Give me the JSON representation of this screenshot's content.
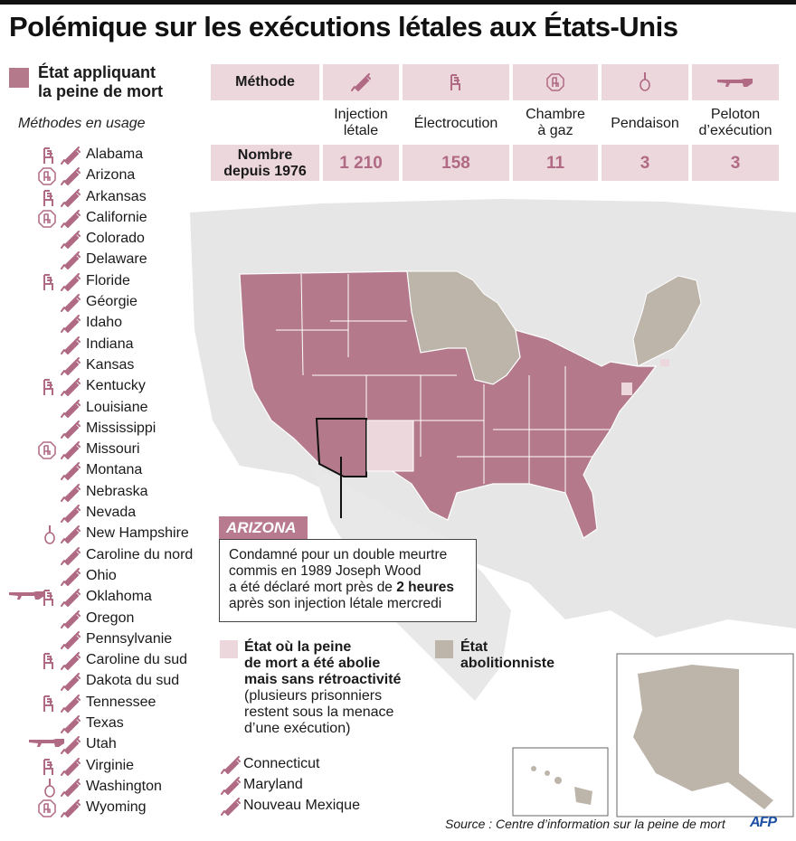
{
  "title": "Polémique sur les exécutions létales aux États-Unis",
  "legend": {
    "death_penalty": {
      "label_line1": "État appliquant",
      "label_line2": "la peine de mort",
      "color": "#b47a8c"
    },
    "abolished_not_retro": {
      "line1": "État où la peine",
      "line2": "de mort a été abolie",
      "line3": "mais sans rétroactivité",
      "note1": "(plusieurs prisonniers",
      "note2": "restent sous la menace",
      "note3": "d’une exécution)",
      "color": "#ecd7dd"
    },
    "abolitionist": {
      "line1": "État",
      "line2": "abolitionniste",
      "color": "#bdb5aa"
    }
  },
  "methods_heading": "Méthodes en usage",
  "table": {
    "header_label": "Méthode",
    "count_label_line1": "Nombre",
    "count_label_line2": "depuis 1976",
    "methods": [
      {
        "icon": "syringe-icon",
        "line1": "Injection",
        "line2": "létale",
        "count": "1 210"
      },
      {
        "icon": "electric-chair-icon",
        "line1": "Électrocution",
        "line2": "",
        "count": "158"
      },
      {
        "icon": "gas-chamber-icon",
        "line1": "Chambre",
        "line2": "à gaz",
        "count": "11"
      },
      {
        "icon": "noose-icon",
        "line1": "Pendaison",
        "line2": "",
        "count": "3"
      },
      {
        "icon": "rifle-icon",
        "line1": "Peloton",
        "line2": "d’exécution",
        "count": "3"
      }
    ]
  },
  "states": [
    {
      "name": "Alabama",
      "methods": [
        "chair",
        "syringe"
      ]
    },
    {
      "name": "Arizona",
      "methods": [
        "gas",
        "syringe"
      ]
    },
    {
      "name": "Arkansas",
      "methods": [
        "chair",
        "syringe"
      ]
    },
    {
      "name": "Californie",
      "methods": [
        "gas",
        "syringe"
      ]
    },
    {
      "name": "Colorado",
      "methods": [
        "syringe"
      ]
    },
    {
      "name": "Delaware",
      "methods": [
        "syringe"
      ]
    },
    {
      "name": "Floride",
      "methods": [
        "chair",
        "syringe"
      ]
    },
    {
      "name": "Géorgie",
      "methods": [
        "syringe"
      ]
    },
    {
      "name": "Idaho",
      "methods": [
        "syringe"
      ]
    },
    {
      "name": "Indiana",
      "methods": [
        "syringe"
      ]
    },
    {
      "name": "Kansas",
      "methods": [
        "syringe"
      ]
    },
    {
      "name": "Kentucky",
      "methods": [
        "chair",
        "syringe"
      ]
    },
    {
      "name": "Louisiane",
      "methods": [
        "syringe"
      ]
    },
    {
      "name": "Mississippi",
      "methods": [
        "syringe"
      ]
    },
    {
      "name": "Missouri",
      "methods": [
        "gas",
        "syringe"
      ]
    },
    {
      "name": "Montana",
      "methods": [
        "syringe"
      ]
    },
    {
      "name": "Nebraska",
      "methods": [
        "syringe"
      ]
    },
    {
      "name": "Nevada",
      "methods": [
        "syringe"
      ]
    },
    {
      "name": "New Hampshire",
      "methods": [
        "noose",
        "syringe"
      ]
    },
    {
      "name": "Caroline du nord",
      "methods": [
        "syringe"
      ]
    },
    {
      "name": "Ohio",
      "methods": [
        "syringe"
      ]
    },
    {
      "name": "Oklahoma",
      "methods": [
        "rifle",
        "chair",
        "syringe"
      ]
    },
    {
      "name": "Oregon",
      "methods": [
        "syringe"
      ]
    },
    {
      "name": "Pennsylvanie",
      "methods": [
        "syringe"
      ]
    },
    {
      "name": "Caroline du sud",
      "methods": [
        "chair",
        "syringe"
      ]
    },
    {
      "name": "Dakota du sud",
      "methods": [
        "syringe"
      ]
    },
    {
      "name": "Tennessee",
      "methods": [
        "chair",
        "syringe"
      ]
    },
    {
      "name": "Texas",
      "methods": [
        "syringe"
      ]
    },
    {
      "name": "Utah",
      "methods": [
        "rifle",
        "syringe"
      ]
    },
    {
      "name": "Virginie",
      "methods": [
        "chair",
        "syringe"
      ]
    },
    {
      "name": "Washington",
      "methods": [
        "noose",
        "syringe"
      ]
    },
    {
      "name": "Wyoming",
      "methods": [
        "gas",
        "syringe"
      ]
    }
  ],
  "abolished_states": [
    "Connecticut",
    "Maryland",
    "Nouveau Mexique"
  ],
  "callout": {
    "title": "ARIZONA",
    "line1": "Condamné pour un double meurtre",
    "line2": "commis en 1989 Joseph Wood",
    "line3_pre": "a été déclaré mort près de ",
    "line3_bold": "2 heures",
    "line4": "après son injection létale mercredi"
  },
  "source": "Source : Centre d’information sur la peine de mort",
  "credit": "AFP",
  "colors": {
    "death": "#b47a8c",
    "abolished": "#ecd7dd",
    "abolitionist": "#bdb5aa",
    "land": "#e6e6e6",
    "icon": "#b06a84"
  }
}
